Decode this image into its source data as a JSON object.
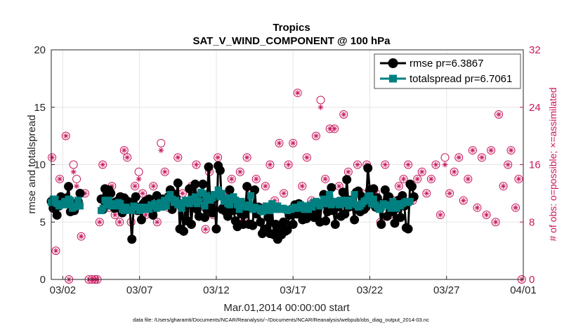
{
  "chart_data": {
    "type": "line",
    "title": "Tropics",
    "subtitle": "SAT_V_WIND_COMPONENT @ 100 hPa",
    "xlabel": "Mar.01,2014 00:00:00 start",
    "ylabel": "rmse and totalspread",
    "y2label": "# of obs: o=possible; ×=assimilated",
    "footnote": "data file: /Users/gharamti/Documents/NCAR/Reanalysis/~/Documents/NCAR/Reanalysis/webpub/obs_diag_output_2014-03.nc",
    "x_tick_labels": [
      "03/02",
      "03/07",
      "03/12",
      "03/17",
      "03/22",
      "03/27",
      "04/01"
    ],
    "x_tick_days": [
      1,
      6,
      11,
      16,
      21,
      26,
      31
    ],
    "xlim_days": [
      0.25,
      31
    ],
    "ylim": [
      0,
      20
    ],
    "y_ticks": [
      0,
      5,
      10,
      15,
      20
    ],
    "y2lim": [
      0,
      32
    ],
    "y2_ticks": [
      0,
      8,
      16,
      24,
      32
    ],
    "legend_position": "top-right",
    "colors": {
      "rmse": "#000000",
      "totalspread": "#008080",
      "obs": "#c8185e",
      "grid": "#e6e6e6"
    },
    "gaps": [
      [
        2.0,
        3.3
      ]
    ],
    "series": [
      {
        "name": "rmse pr=6.3867",
        "marker": "circle",
        "t0": 0.25,
        "dt": 0.125,
        "values": [
          6.8,
          6.2,
          6.5,
          5.6,
          6.4,
          7.2,
          7.0,
          6.8,
          7.1,
          8.1,
          5.9,
          6.3,
          6.0,
          6.6,
          6.8,
          7.5,
          null,
          null,
          null,
          null,
          null,
          null,
          null,
          null,
          null,
          null,
          7.0,
          6.1,
          7.9,
          7.4,
          7.8,
          7.5,
          6.5,
          6.2,
          6.8,
          6.3,
          7.2,
          5.8,
          7.1,
          6.4,
          6.8,
          6.1,
          3.5,
          6.5,
          7.2,
          6.0,
          6.3,
          5.2,
          6.6,
          6.8,
          6.2,
          7.0,
          6.4,
          5.6,
          6.2,
          7.3,
          6.8,
          6.5,
          7.0,
          6.9,
          6.5,
          7.2,
          7.8,
          6.1,
          7.4,
          7.1,
          8.4,
          4.4,
          6.3,
          4.2,
          6.6,
          5.1,
          7.9,
          4.8,
          7.2,
          8.3,
          6.1,
          5.5,
          7.1,
          8.3,
          5.4,
          6.1,
          9.8,
          6.4,
          5.8,
          7.0,
          4.4,
          9.9,
          9.5,
          6.1,
          6.3,
          5.9,
          5.5,
          7.8,
          6.8,
          6.0,
          5.1,
          4.6,
          6.2,
          5.7,
          4.8,
          5.7,
          8.1,
          4.8,
          4.8,
          4.7,
          7.8,
          5.7,
          6.3,
          5.0,
          4.0,
          4.3,
          4.4,
          5.4,
          4.0,
          6.4,
          3.9,
          4.8,
          3.5,
          4.4,
          3.9,
          5.0,
          4.2,
          4.3,
          5.6,
          6.1,
          4.8,
          6.5,
          5.7,
          6.6,
          6.0,
          5.2,
          6.1,
          5.3,
          6.0,
          5.7,
          6.3,
          5.4,
          5.9,
          6.3,
          5.0,
          6.6,
          7.4,
          5.1,
          5.9,
          6.0,
          8.0,
          6.0,
          4.8,
          6.3,
          6.8,
          5.5,
          7.6,
          5.7,
          8.7,
          6.3,
          6.9,
          6.4,
          5.2,
          7.6,
          7.7,
          5.9,
          7.2,
          6.1,
          6.3,
          9.7,
          7.8,
          7.0,
          7.9,
          6.3,
          7.1,
          6.5,
          4.8,
          6.6,
          7.8,
          5.5,
          7.2,
          6.0,
          5.9,
          4.9,
          6.2,
          6.9,
          5.4,
          7.3,
          6.4,
          4.5,
          4.4,
          8.3,
          8.1,
          7.2
        ]
      },
      {
        "name": "totalspread pr=6.7061",
        "marker": "square",
        "t0": 0.25,
        "dt": 0.125,
        "values": [
          6.7,
          7.0,
          7.0,
          6.6,
          6.4,
          6.5,
          6.6,
          6.8,
          6.5,
          7.0,
          6.9,
          6.2,
          6.3,
          6.4,
          6.9,
          6.4,
          null,
          null,
          null,
          null,
          null,
          null,
          null,
          null,
          null,
          null,
          6.0,
          6.2,
          6.9,
          6.5,
          6.9,
          6.4,
          6.5,
          6.6,
          6.4,
          6.7,
          6.6,
          6.1,
          6.0,
          6.3,
          6.1,
          6.1,
          6.0,
          6.4,
          6.3,
          6.3,
          6.0,
          6.3,
          6.1,
          6.2,
          6.3,
          6.1,
          6.5,
          6.4,
          6.6,
          6.2,
          6.4,
          6.7,
          6.3,
          6.9,
          6.4,
          7.1,
          7.4,
          7.0,
          6.7,
          6.9,
          6.5,
          6.6,
          6.2,
          6.7,
          6.9,
          6.8,
          6.6,
          7.0,
          6.8,
          7.2,
          6.6,
          6.8,
          7.6,
          7.5,
          6.4,
          7.3,
          7.0,
          6.9,
          7.1,
          7.4,
          7.4,
          7.8,
          7.2,
          7.5,
          6.8,
          7.1,
          6.6,
          6.5,
          7.1,
          7.2,
          6.9,
          6.5,
          6.1,
          6.8,
          6.4,
          6.4,
          6.3,
          6.5,
          7.3,
          6.1,
          6.3,
          6.2,
          6.2,
          6.0,
          5.9,
          6.2,
          6.4,
          6.1,
          6.0,
          6.6,
          6.2,
          6.1,
          6.4,
          6.1,
          6.2,
          6.2,
          6.1,
          6.0,
          6.1,
          6.1,
          6.2,
          6.3,
          6.2,
          6.2,
          6.5,
          6.4,
          6.1,
          6.4,
          6.1,
          6.5,
          6.3,
          6.7,
          6.8,
          6.6,
          6.4,
          6.7,
          7.0,
          6.6,
          6.8,
          7.4,
          6.5,
          6.7,
          6.8,
          6.7,
          6.5,
          6.9,
          6.6,
          6.7,
          6.9,
          6.4,
          6.9,
          6.6,
          7.4,
          6.5,
          6.3,
          6.4,
          6.6,
          6.8,
          6.9,
          7.2,
          7.3,
          6.6,
          7.0,
          6.5,
          6.3,
          6.1,
          6.3,
          6.6,
          6.5,
          6.5,
          6.4,
          6.2,
          6.8,
          6.5,
          6.2,
          6.6,
          6.4,
          6.6,
          6.7,
          6.8,
          6.7,
          6.8
        ]
      }
    ],
    "obs_counts": [
      {
        "day": 0.3,
        "possible": 17,
        "assimilated": 17
      },
      {
        "day": 0.55,
        "possible": 4,
        "assimilated": 4
      },
      {
        "day": 0.8,
        "possible": 14,
        "assimilated": 14
      },
      {
        "day": 1.05,
        "possible": 11,
        "assimilated": 11
      },
      {
        "day": 1.2,
        "possible": 20,
        "assimilated": 20
      },
      {
        "day": 1.4,
        "possible": 0,
        "assimilated": 0
      },
      {
        "day": 1.7,
        "possible": 16,
        "assimilated": 15
      },
      {
        "day": 1.9,
        "possible": 14,
        "assimilated": 13
      },
      {
        "day": 2.2,
        "possible": 6,
        "assimilated": 6
      },
      {
        "day": 2.45,
        "possible": 12,
        "assimilated": 12
      },
      {
        "day": 2.7,
        "possible": 0,
        "assimilated": 0
      },
      {
        "day": 2.9,
        "possible": 0,
        "assimilated": 0
      },
      {
        "day": 3.1,
        "possible": 0,
        "assimilated": 0
      },
      {
        "day": 3.25,
        "possible": 0,
        "assimilated": 0
      },
      {
        "day": 3.4,
        "possible": 8,
        "assimilated": 8
      },
      {
        "day": 3.6,
        "possible": 16,
        "assimilated": 16
      },
      {
        "day": 3.8,
        "possible": 11,
        "assimilated": 11
      },
      {
        "day": 4.0,
        "possible": 10,
        "assimilated": 10
      },
      {
        "day": 4.2,
        "possible": 13,
        "assimilated": 13
      },
      {
        "day": 4.4,
        "possible": 9,
        "assimilated": 9
      },
      {
        "day": 4.7,
        "possible": 8,
        "assimilated": 8
      },
      {
        "day": 5.0,
        "possible": 18,
        "assimilated": 18
      },
      {
        "day": 5.2,
        "possible": 17,
        "assimilated": 17
      },
      {
        "day": 5.45,
        "possible": 8,
        "assimilated": 8
      },
      {
        "day": 5.7,
        "possible": 13,
        "assimilated": 13
      },
      {
        "day": 5.95,
        "possible": 15,
        "assimilated": 14
      },
      {
        "day": 6.2,
        "possible": 12,
        "assimilated": 12
      },
      {
        "day": 6.4,
        "possible": 9,
        "assimilated": 9
      },
      {
        "day": 6.65,
        "possible": 11,
        "assimilated": 11
      },
      {
        "day": 6.9,
        "possible": 13,
        "assimilated": 13
      },
      {
        "day": 7.15,
        "possible": 8,
        "assimilated": 8
      },
      {
        "day": 7.4,
        "possible": 19,
        "assimilated": 18
      },
      {
        "day": 7.65,
        "possible": 15,
        "assimilated": 15
      },
      {
        "day": 7.9,
        "possible": 10,
        "assimilated": 10
      },
      {
        "day": 8.2,
        "possible": 12,
        "assimilated": 12
      },
      {
        "day": 8.5,
        "possible": 17,
        "assimilated": 17
      },
      {
        "day": 8.8,
        "possible": 12,
        "assimilated": 12
      },
      {
        "day": 9.1,
        "possible": 9,
        "assimilated": 9
      },
      {
        "day": 9.4,
        "possible": 13,
        "assimilated": 13
      },
      {
        "day": 9.7,
        "possible": 16,
        "assimilated": 16
      },
      {
        "day": 10.0,
        "possible": 12,
        "assimilated": 12
      },
      {
        "day": 10.3,
        "possible": 7,
        "assimilated": 7
      },
      {
        "day": 10.55,
        "possible": 15,
        "assimilated": 15
      },
      {
        "day": 10.8,
        "possible": 9,
        "assimilated": 9
      },
      {
        "day": 11.1,
        "possible": 17,
        "assimilated": 17
      },
      {
        "day": 11.4,
        "possible": 10,
        "assimilated": 10
      },
      {
        "day": 11.7,
        "possible": 12,
        "assimilated": 12
      },
      {
        "day": 12.0,
        "possible": 14,
        "assimilated": 14
      },
      {
        "day": 12.3,
        "possible": 11,
        "assimilated": 11
      },
      {
        "day": 12.55,
        "possible": 15,
        "assimilated": 15
      },
      {
        "day": 12.8,
        "possible": 8,
        "assimilated": 8
      },
      {
        "day": 13.0,
        "possible": 17,
        "assimilated": 17
      },
      {
        "day": 13.3,
        "possible": 12,
        "assimilated": 12
      },
      {
        "day": 13.6,
        "possible": 14,
        "assimilated": 14
      },
      {
        "day": 13.9,
        "possible": 10,
        "assimilated": 10
      },
      {
        "day": 14.2,
        "possible": 13,
        "assimilated": 13
      },
      {
        "day": 14.5,
        "possible": 16,
        "assimilated": 16
      },
      {
        "day": 14.8,
        "possible": 11,
        "assimilated": 11
      },
      {
        "day": 15.1,
        "possible": 19,
        "assimilated": 19
      },
      {
        "day": 15.4,
        "possible": 12,
        "assimilated": 12
      },
      {
        "day": 15.7,
        "possible": 16,
        "assimilated": 16
      },
      {
        "day": 16.0,
        "possible": 19,
        "assimilated": 19
      },
      {
        "day": 16.3,
        "possible": 26,
        "assimilated": 26
      },
      {
        "day": 16.6,
        "possible": 13,
        "assimilated": 13
      },
      {
        "day": 16.9,
        "possible": 17,
        "assimilated": 17
      },
      {
        "day": 17.2,
        "possible": 11,
        "assimilated": 11
      },
      {
        "day": 17.5,
        "possible": 20,
        "assimilated": 20
      },
      {
        "day": 17.8,
        "possible": 25,
        "assimilated": 24
      },
      {
        "day": 18.1,
        "possible": 14,
        "assimilated": 14
      },
      {
        "day": 18.4,
        "possible": 21,
        "assimilated": 21
      },
      {
        "day": 18.7,
        "possible": 21,
        "assimilated": 21
      },
      {
        "day": 19.0,
        "possible": 13,
        "assimilated": 13
      },
      {
        "day": 19.3,
        "possible": 23,
        "assimilated": 23
      },
      {
        "day": 19.6,
        "possible": 15,
        "assimilated": 15
      },
      {
        "day": 19.9,
        "possible": 11,
        "assimilated": 11
      },
      {
        "day": 20.2,
        "possible": 16,
        "assimilated": 16
      },
      {
        "day": 20.5,
        "possible": 12,
        "assimilated": 12
      },
      {
        "day": 20.8,
        "possible": 16,
        "assimilated": 16
      },
      {
        "day": 21.1,
        "possible": 11,
        "assimilated": 11
      },
      {
        "day": 21.4,
        "possible": 12,
        "assimilated": 12
      },
      {
        "day": 21.7,
        "possible": 8,
        "assimilated": 8
      },
      {
        "day": 22.0,
        "possible": 16,
        "assimilated": 16
      },
      {
        "day": 22.3,
        "possible": 9,
        "assimilated": 9
      },
      {
        "day": 22.6,
        "possible": 11,
        "assimilated": 11
      },
      {
        "day": 22.9,
        "possible": 13,
        "assimilated": 13
      },
      {
        "day": 23.2,
        "possible": 14,
        "assimilated": 14
      },
      {
        "day": 23.5,
        "possible": 16,
        "assimilated": 16
      },
      {
        "day": 23.8,
        "possible": 11,
        "assimilated": 11
      },
      {
        "day": 24.1,
        "possible": 14,
        "assimilated": 14
      },
      {
        "day": 24.4,
        "possible": 15,
        "assimilated": 15
      },
      {
        "day": 24.7,
        "possible": 12,
        "assimilated": 12
      },
      {
        "day": 25.0,
        "possible": 14,
        "assimilated": 14
      },
      {
        "day": 25.3,
        "possible": 16,
        "assimilated": 16
      },
      {
        "day": 25.6,
        "possible": 9,
        "assimilated": 9
      },
      {
        "day": 25.9,
        "possible": 17,
        "assimilated": 16
      },
      {
        "day": 26.2,
        "possible": 12,
        "assimilated": 12
      },
      {
        "day": 26.5,
        "possible": 15,
        "assimilated": 15
      },
      {
        "day": 26.8,
        "possible": 17,
        "assimilated": 17
      },
      {
        "day": 27.1,
        "possible": 11,
        "assimilated": 11
      },
      {
        "day": 27.4,
        "possible": 14,
        "assimilated": 14
      },
      {
        "day": 27.7,
        "possible": 18,
        "assimilated": 18
      },
      {
        "day": 28.0,
        "possible": 10,
        "assimilated": 10
      },
      {
        "day": 28.3,
        "possible": 17,
        "assimilated": 17
      },
      {
        "day": 28.6,
        "possible": 9,
        "assimilated": 9
      },
      {
        "day": 28.9,
        "possible": 18,
        "assimilated": 18
      },
      {
        "day": 29.2,
        "possible": 8,
        "assimilated": 8
      },
      {
        "day": 29.4,
        "possible": 23,
        "assimilated": 23
      },
      {
        "day": 29.7,
        "possible": 13,
        "assimilated": 13
      },
      {
        "day": 30.0,
        "possible": 16,
        "assimilated": 16
      },
      {
        "day": 30.2,
        "possible": 18,
        "assimilated": 18
      },
      {
        "day": 30.5,
        "possible": 10,
        "assimilated": 10
      },
      {
        "day": 30.7,
        "possible": 14,
        "assimilated": 14
      },
      {
        "day": 30.9,
        "possible": 0,
        "assimilated": 0
      }
    ]
  }
}
